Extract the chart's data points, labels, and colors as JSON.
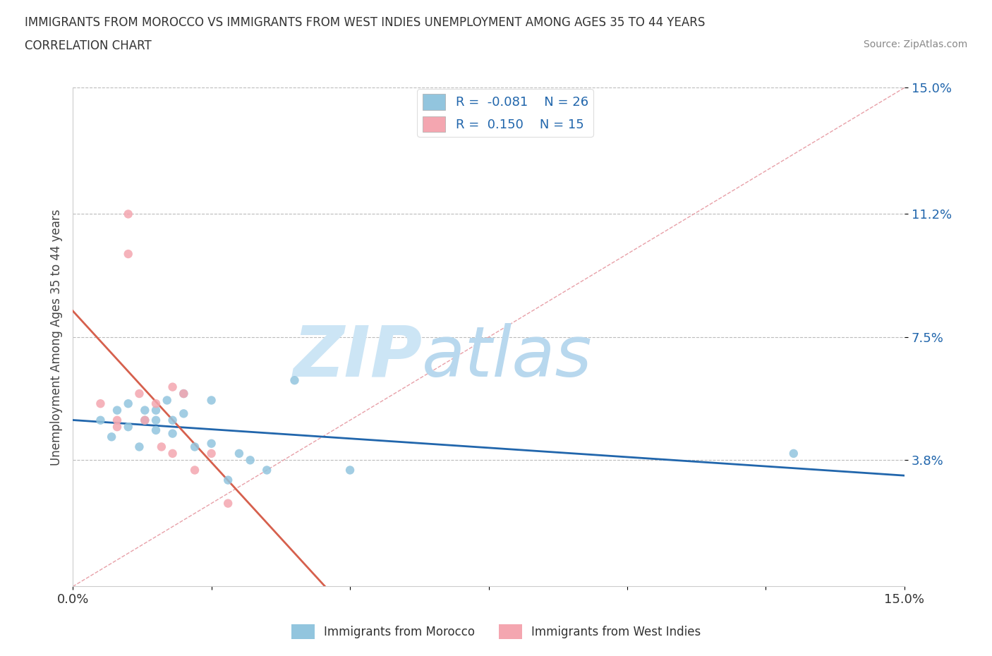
{
  "title_line1": "IMMIGRANTS FROM MOROCCO VS IMMIGRANTS FROM WEST INDIES UNEMPLOYMENT AMONG AGES 35 TO 44 YEARS",
  "title_line2": "CORRELATION CHART",
  "source_text": "Source: ZipAtlas.com",
  "ylabel": "Unemployment Among Ages 35 to 44 years",
  "legend_label1": "Immigrants from Morocco",
  "legend_label2": "Immigrants from West Indies",
  "R1": -0.081,
  "N1": 26,
  "R2": 0.15,
  "N2": 15,
  "color_morocco": "#92c5de",
  "color_westindies": "#f4a6b0",
  "color_morocco_line": "#2166ac",
  "color_westindies_line": "#d6604d",
  "xmin": 0.0,
  "xmax": 0.15,
  "ymin": 0.0,
  "ymax": 0.15,
  "yticks": [
    0.038,
    0.075,
    0.112,
    0.15
  ],
  "ytick_labels": [
    "3.8%",
    "7.5%",
    "11.2%",
    "15.0%"
  ],
  "xticks": [
    0.0,
    0.025,
    0.05,
    0.075,
    0.1,
    0.125,
    0.15
  ],
  "xtick_labels": [
    "0.0%",
    "",
    "",
    "",
    "",
    "",
    "15.0%"
  ],
  "morocco_x": [
    0.005,
    0.007,
    0.008,
    0.01,
    0.01,
    0.012,
    0.013,
    0.013,
    0.015,
    0.015,
    0.015,
    0.017,
    0.018,
    0.018,
    0.02,
    0.02,
    0.022,
    0.025,
    0.025,
    0.028,
    0.03,
    0.032,
    0.035,
    0.04,
    0.05,
    0.13
  ],
  "morocco_y": [
    0.05,
    0.045,
    0.053,
    0.048,
    0.055,
    0.042,
    0.05,
    0.053,
    0.047,
    0.05,
    0.053,
    0.056,
    0.05,
    0.046,
    0.058,
    0.052,
    0.042,
    0.056,
    0.043,
    0.032,
    0.04,
    0.038,
    0.035,
    0.062,
    0.035,
    0.04
  ],
  "westindies_x": [
    0.005,
    0.008,
    0.008,
    0.01,
    0.01,
    0.012,
    0.013,
    0.015,
    0.016,
    0.018,
    0.018,
    0.02,
    0.022,
    0.025,
    0.028
  ],
  "westindies_y": [
    0.055,
    0.05,
    0.048,
    0.112,
    0.1,
    0.058,
    0.05,
    0.055,
    0.042,
    0.04,
    0.06,
    0.058,
    0.035,
    0.04,
    0.025
  ],
  "background_color": "#ffffff",
  "watermark_text1": "ZIP",
  "watermark_text2": "atlas",
  "watermark_color": "#cce5f5"
}
